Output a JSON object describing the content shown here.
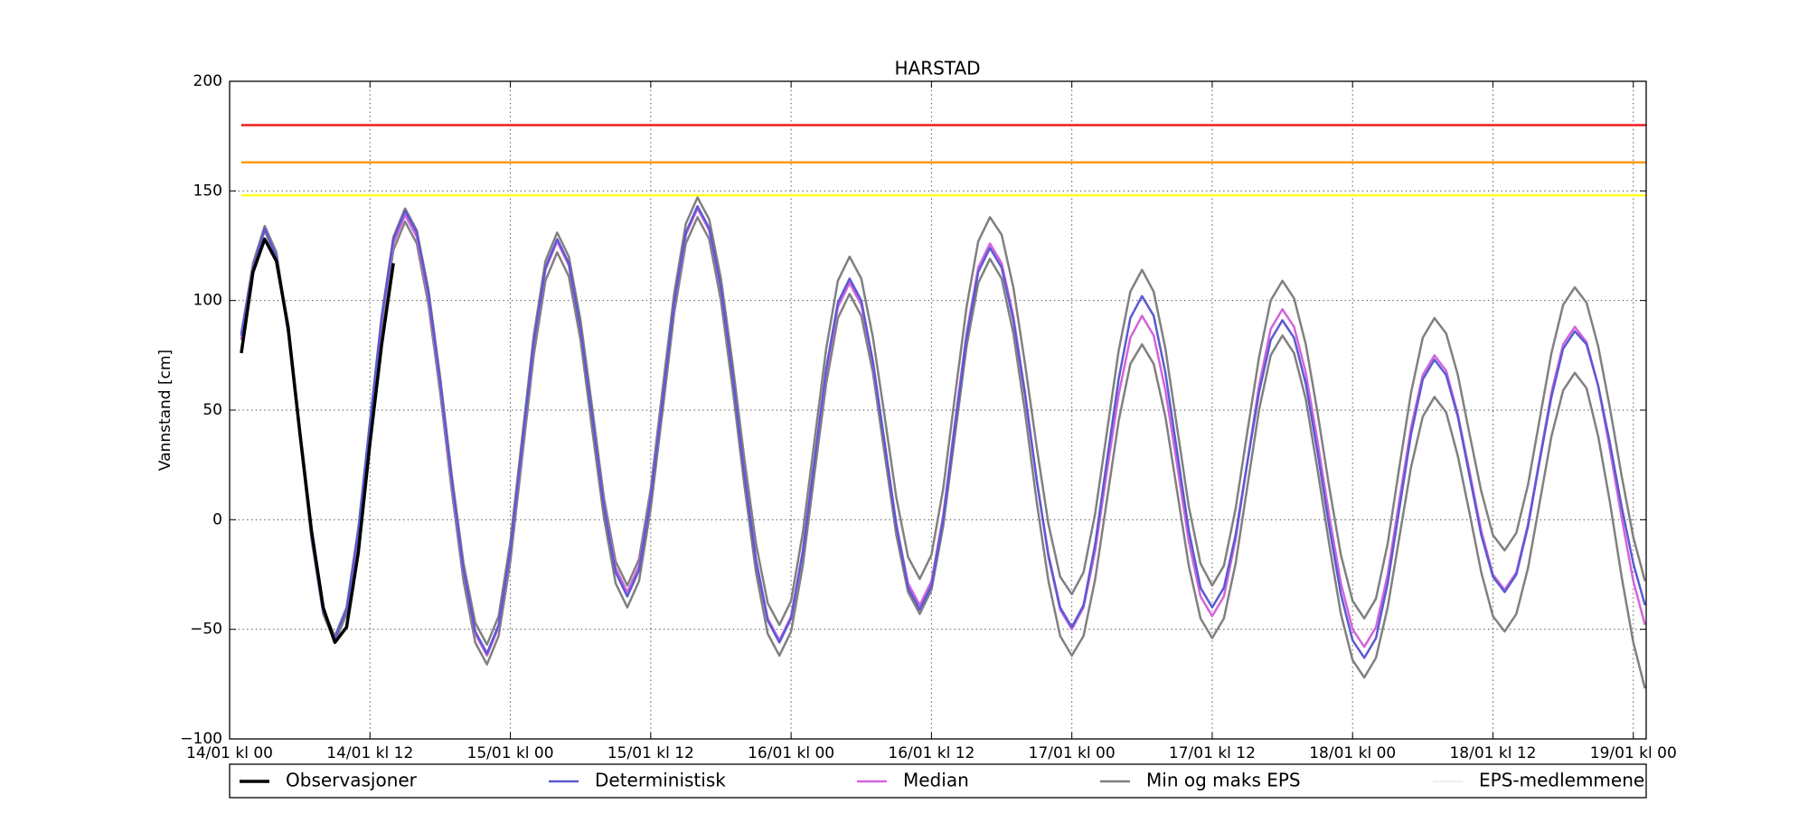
{
  "chart_data": {
    "type": "line",
    "title": "HARSTAD",
    "ylabel": "Vannstand [cm]",
    "xlim": [
      0,
      121.1
    ],
    "ylim": [
      -100,
      200
    ],
    "grid": true,
    "xticks": [
      {
        "value": 0,
        "label": "14/01 kl 00"
      },
      {
        "value": 12,
        "label": "14/01 kl 12"
      },
      {
        "value": 24,
        "label": "15/01 kl 00"
      },
      {
        "value": 36,
        "label": "15/01 kl 12"
      },
      {
        "value": 48,
        "label": "16/01 kl 00"
      },
      {
        "value": 60,
        "label": "16/01 kl 12"
      },
      {
        "value": 72,
        "label": "17/01 kl 00"
      },
      {
        "value": 84,
        "label": "17/01 kl 12"
      },
      {
        "value": 96,
        "label": "18/01 kl 00"
      },
      {
        "value": 108,
        "label": "18/01 kl 12"
      },
      {
        "value": 120,
        "label": "19/01 kl 00"
      }
    ],
    "yticks": [
      200,
      150,
      100,
      50,
      0,
      {
        "value": -50,
        "label": "−50"
      },
      {
        "value": -100,
        "label": "−100"
      }
    ],
    "thresholds": [
      {
        "value": 180,
        "color": "#ee1c1c"
      },
      {
        "value": 163,
        "color": "#ff9a10"
      },
      {
        "value": 148,
        "color": "#ffff20"
      }
    ],
    "x": [
      1,
      2,
      3,
      4,
      5,
      6,
      7,
      8,
      9,
      10,
      11,
      12,
      13,
      14,
      15,
      16,
      17,
      18,
      19,
      20,
      21,
      22,
      23,
      24,
      25,
      26,
      27,
      28,
      29,
      30,
      31,
      32,
      33,
      34,
      35,
      36,
      37,
      38,
      39,
      40,
      41,
      42,
      43,
      44,
      45,
      46,
      47,
      48,
      49,
      50,
      51,
      52,
      53,
      54,
      55,
      56,
      57,
      58,
      59,
      60,
      61,
      62,
      63,
      64,
      65,
      66,
      67,
      68,
      69,
      70,
      71,
      72,
      73,
      74,
      75,
      76,
      77,
      78,
      79,
      80,
      81,
      82,
      83,
      84,
      85,
      86,
      87,
      88,
      89,
      90,
      91,
      92,
      93,
      94,
      95,
      96,
      97,
      98,
      99,
      100,
      101,
      102,
      103,
      104,
      105,
      106,
      107,
      108,
      109,
      110,
      111,
      112,
      113,
      114,
      115,
      116,
      117,
      118,
      119,
      120,
      121
    ],
    "series": [
      {
        "name": "Observasjoner",
        "color": "#000000",
        "width": 3.5,
        "x": [
          1,
          2,
          3,
          4,
          5,
          6,
          7,
          8,
          9,
          10,
          11,
          12,
          13,
          14
        ],
        "values": [
          76,
          113,
          128,
          118,
          88,
          40,
          -5,
          -40,
          -56,
          -49,
          -15,
          35,
          80,
          117
        ]
      },
      {
        "name": "Deterministisk",
        "color": "#5a5ad2",
        "width": 2.5,
        "values": [
          84,
          115,
          133,
          120,
          86,
          40,
          -7,
          -42,
          -54,
          -41,
          -5,
          44,
          92,
          128,
          141,
          131,
          103,
          63,
          18,
          -23,
          -51,
          -61,
          -48,
          -14,
          34,
          81,
          115,
          128,
          117,
          87,
          47,
          6,
          -24,
          -35,
          -23,
          10,
          54,
          99,
          131,
          143,
          133,
          106,
          66,
          21,
          -19,
          -46,
          -56,
          -45,
          -15,
          27,
          69,
          99,
          110,
          100,
          72,
          35,
          -3,
          -31,
          -41,
          -30,
          0,
          42,
          83,
          113,
          124,
          115,
          91,
          57,
          18,
          -16,
          -40,
          -49,
          -39,
          -11,
          27,
          64,
          92,
          102,
          93,
          67,
          31,
          -5,
          -31,
          -40,
          -31,
          -7,
          26,
          58,
          82,
          91,
          83,
          62,
          31,
          -3,
          -34,
          -55,
          -63,
          -54,
          -29,
          5,
          39,
          64,
          73,
          66,
          47,
          20,
          -7,
          -26,
          -33,
          -25,
          -3,
          27,
          56,
          78,
          86,
          80,
          61,
          35,
          6,
          -20,
          -39
        ]
      },
      {
        "name": "Median",
        "color": "#d264dc",
        "width": 2.5,
        "values": [
          83,
          115,
          133,
          120,
          86,
          40,
          -7,
          -42,
          -54,
          -41,
          -6,
          43,
          91,
          126,
          139,
          129,
          101,
          61,
          16,
          -24,
          -52,
          -62,
          -49,
          -15,
          33,
          80,
          114,
          127,
          116,
          87,
          47,
          7,
          -22,
          -33,
          -21,
          11,
          55,
          98,
          130,
          142,
          132,
          105,
          66,
          22,
          -18,
          -45,
          -55,
          -44,
          -14,
          27,
          67,
          97,
          108,
          98,
          71,
          35,
          -2,
          -29,
          -39,
          -28,
          2,
          44,
          85,
          115,
          126,
          117,
          93,
          58,
          18,
          -17,
          -41,
          -50,
          -40,
          -14,
          22,
          57,
          83,
          93,
          84,
          59,
          25,
          -10,
          -35,
          -44,
          -35,
          -9,
          26,
          61,
          87,
          96,
          88,
          67,
          36,
          2,
          -29,
          -50,
          -58,
          -49,
          -25,
          9,
          42,
          66,
          75,
          68,
          48,
          22,
          -5,
          -25,
          -32,
          -24,
          -2,
          28,
          58,
          80,
          88,
          81,
          61,
          32,
          1,
          -28,
          -48
        ]
      },
      {
        "name": "Min og maks EPS",
        "color": "#808080",
        "width": 2.5,
        "min": [
          82,
          114,
          132,
          119,
          85,
          38,
          -9,
          -43,
          -56,
          -43,
          -8,
          40,
          88,
          123,
          136,
          126,
          98,
          58,
          13,
          -28,
          -56,
          -66,
          -53,
          -19,
          28,
          75,
          109,
          122,
          111,
          82,
          41,
          1,
          -29,
          -40,
          -28,
          5,
          49,
          94,
          126,
          138,
          128,
          100,
          60,
          16,
          -24,
          -52,
          -62,
          -51,
          -21,
          21,
          62,
          92,
          103,
          93,
          67,
          30,
          -7,
          -33,
          -43,
          -32,
          -3,
          38,
          79,
          108,
          119,
          110,
          85,
          49,
          8,
          -28,
          -53,
          -62,
          -53,
          -27,
          9,
          45,
          71,
          80,
          71,
          47,
          13,
          -21,
          -45,
          -54,
          -45,
          -20,
          15,
          50,
          75,
          84,
          76,
          55,
          23,
          -11,
          -43,
          -64,
          -72,
          -63,
          -40,
          -8,
          24,
          47,
          56,
          49,
          29,
          3,
          -24,
          -44,
          -51,
          -43,
          -22,
          8,
          38,
          59,
          67,
          60,
          38,
          8,
          -26,
          -56,
          -77
        ],
        "max": [
          85,
          117,
          134,
          122,
          87,
          41,
          -6,
          -41,
          -53,
          -40,
          -4,
          45,
          93,
          129,
          142,
          132,
          105,
          65,
          20,
          -20,
          -47,
          -57,
          -44,
          -10,
          37,
          84,
          118,
          131,
          120,
          91,
          51,
          10,
          -19,
          -30,
          -18,
          14,
          59,
          103,
          135,
          147,
          137,
          110,
          71,
          28,
          -11,
          -38,
          -48,
          -37,
          -6,
          36,
          78,
          109,
          120,
          110,
          83,
          47,
          10,
          -17,
          -27,
          -16,
          14,
          56,
          97,
          127,
          138,
          130,
          106,
          71,
          33,
          -2,
          -26,
          -34,
          -24,
          3,
          40,
          77,
          104,
          114,
          104,
          78,
          42,
          6,
          -20,
          -30,
          -21,
          5,
          40,
          74,
          100,
          109,
          101,
          80,
          49,
          15,
          -16,
          -37,
          -45,
          -36,
          -11,
          24,
          58,
          83,
          92,
          85,
          66,
          39,
          13,
          -7,
          -14,
          -6,
          16,
          46,
          76,
          98,
          106,
          99,
          79,
          51,
          20,
          -8,
          -28
        ]
      },
      {
        "name": "EPS-medlemmene",
        "color": "#dcdcdc",
        "width": 1
      }
    ]
  }
}
